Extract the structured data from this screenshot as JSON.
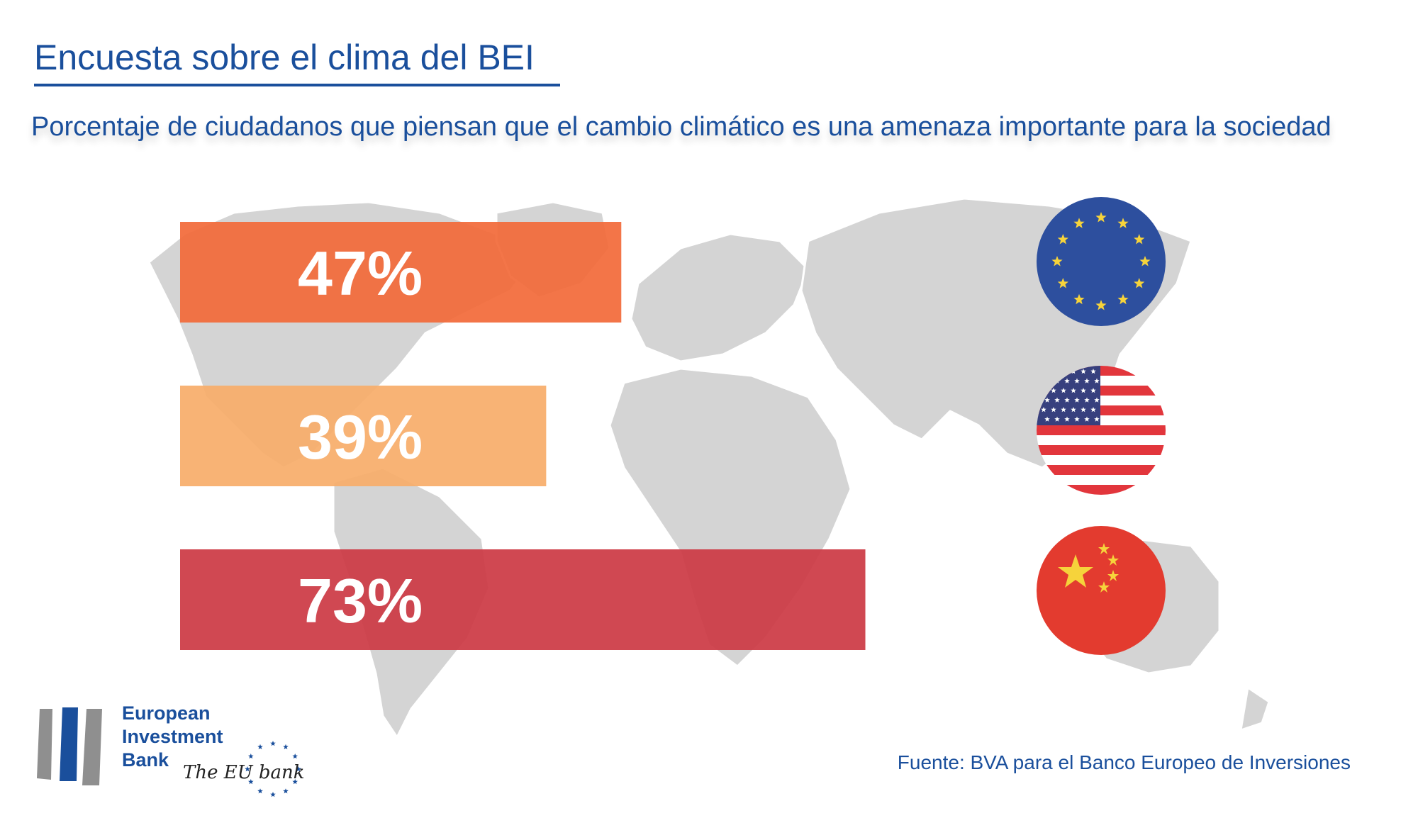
{
  "title": "Encuesta sobre el clima del BEI",
  "subtitle": "Porcentaje de ciudadanos que piensan que el cambio climático es una amenaza importante para la sociedad",
  "chart_data": {
    "type": "bar",
    "orientation": "horizontal",
    "categories": [
      "EU",
      "US",
      "China"
    ],
    "values": [
      47,
      39,
      73
    ],
    "labels": [
      "47%",
      "39%",
      "73%"
    ],
    "unit": "%",
    "colors": [
      "#f26b3a",
      "#f7ad6a",
      "#cc3a45"
    ],
    "flag_icons": [
      "eu-flag-icon",
      "us-flag-icon",
      "china-flag-icon"
    ],
    "xlim": [
      0,
      100
    ],
    "axes_visible": false,
    "grid": false,
    "legend": "none"
  },
  "logo": {
    "line1": "European",
    "line2": "Investment",
    "line3": "Bank",
    "tagline": "The EU bank",
    "brand_color": "#1a4f9c"
  },
  "source": "Fuente: BVA para el Banco Europeo de Inversiones"
}
